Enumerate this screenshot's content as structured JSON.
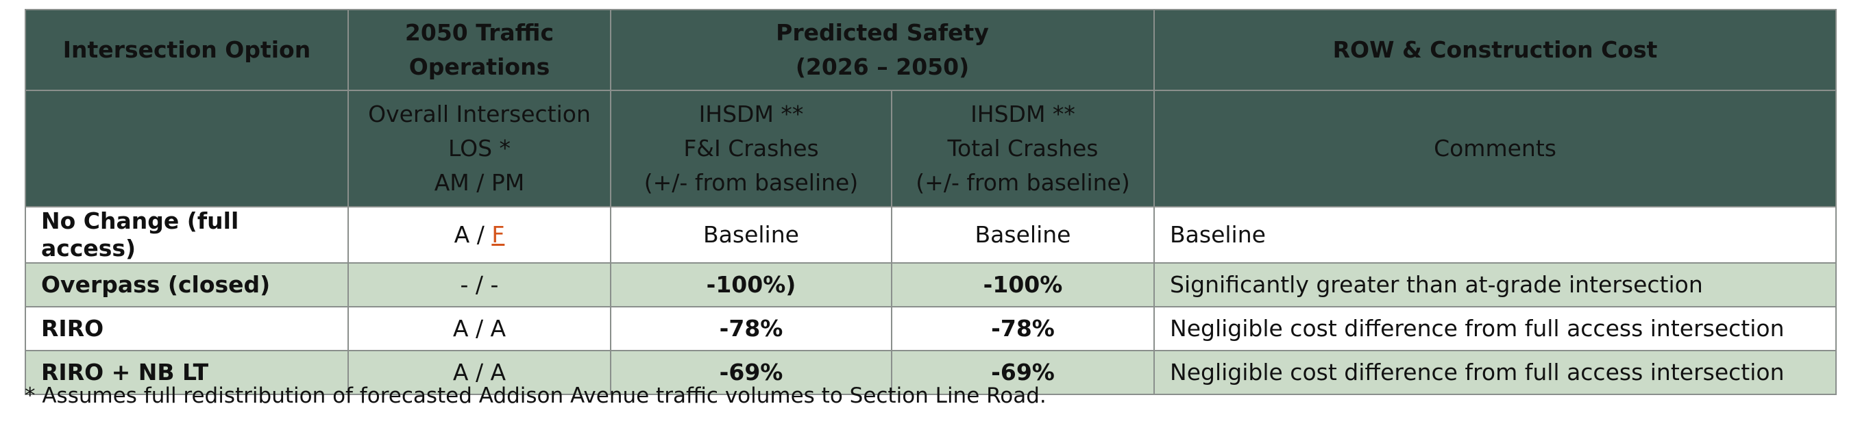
{
  "table": {
    "header1": {
      "option": "Intersection Option",
      "traffic_line1": "2050 Traffic",
      "traffic_line2": "Operations",
      "safety_line1": "Predicted Safety",
      "safety_line2": "(2026 – 2050)",
      "cost": "ROW & Construction Cost"
    },
    "header2": {
      "los_line1": "Overall Intersection",
      "los_line2": "LOS *",
      "los_line3": "AM / PM",
      "fi_line1": "IHSDM **",
      "fi_line2": "F&I Crashes",
      "fi_line3": "(+/- from baseline)",
      "total_line1": "IHSDM **",
      "total_line2": "Total Crashes",
      "total_line3": "(+/- from baseline)",
      "comments": "Comments"
    },
    "rows": [
      {
        "option": "No Change (full access)",
        "los_am": "A",
        "los_sep": " / ",
        "los_pm": "F",
        "fi": "Baseline",
        "total": "Baseline",
        "comment": "Baseline"
      },
      {
        "option": "Overpass (closed)",
        "los": "- / -",
        "fi": "-100%)",
        "total": "-100%",
        "comment": "Significantly greater than at-grade intersection"
      },
      {
        "option": "RIRO",
        "los": "A / A",
        "fi": "-78%",
        "total": "-78%",
        "comment": "Negligible cost difference from full access intersection"
      },
      {
        "option": "RIRO + NB LT",
        "los": "A / A",
        "fi": "-69%",
        "total": "-69%",
        "comment": "Negligible cost difference from full access intersection"
      }
    ]
  },
  "footnote": "* Assumes full redistribution of forecasted Addison Avenue traffic volumes to Section Line Road.",
  "colors": {
    "header_bg": "#3f5b54",
    "alt_row_bg": "#cbdbc8",
    "improvement_text": "#1fb14a",
    "failing_los_text": "#d4541b"
  }
}
